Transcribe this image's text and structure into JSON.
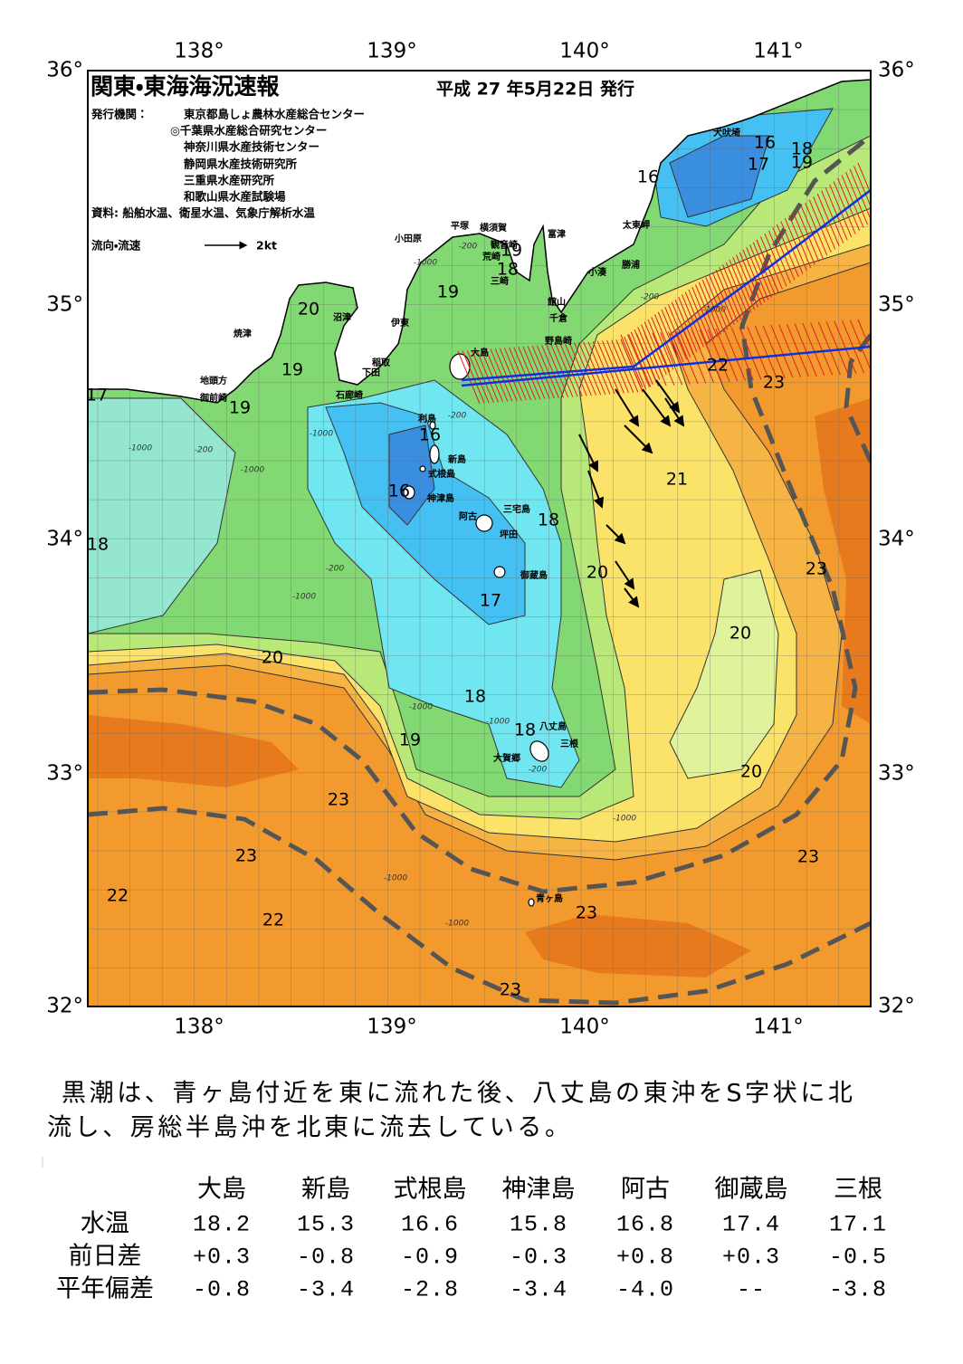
{
  "header": {
    "title": "関東・東海海況速報",
    "date": "平成 27 年5月22日 発行",
    "publisher_label": "発行機関：",
    "publishers": [
      "東京都島しょ農林水産総合センター",
      "◎千葉県水産総合研究センター",
      "神奈川県水産技術センター",
      "静岡県水産技術研究所",
      "三重県水産研究所",
      "和歌山県水産試験場"
    ],
    "sources": "資料: 船舶水温、衛星水温、気象庁解析水温",
    "legend_label": "流向・流速",
    "legend_scale": "2kt"
  },
  "map": {
    "lon_labels": [
      "138°",
      "139°",
      "140°",
      "141°"
    ],
    "lat_labels": [
      "36°",
      "35°",
      "34°",
      "33°",
      "32°"
    ],
    "places": [
      "犬吠埼",
      "太東岬",
      "勝浦",
      "小湊",
      "富津",
      "横須賀",
      "観音崎",
      "荒崎",
      "三崎",
      "館山",
      "千倉",
      "野島崎",
      "平塚",
      "小田原",
      "沼津",
      "伊東",
      "焼津",
      "稲取",
      "下田",
      "石廊崎",
      "地頭方",
      "御前崎",
      "大島",
      "利島",
      "新島",
      "式根島",
      "神津島",
      "三宅島",
      "阿古",
      "坪田",
      "御蔵島",
      "八丈島",
      "三根",
      "大賀郷",
      "青ヶ島"
    ],
    "isotherm_labels": [
      "16",
      "16",
      "17",
      "18",
      "19",
      "19",
      "18",
      "19",
      "20",
      "19",
      "19",
      "17",
      "22",
      "23",
      "16",
      "21",
      "16",
      "18",
      "18",
      "23",
      "20",
      "17",
      "20",
      "20",
      "18",
      "18",
      "19",
      "20",
      "23",
      "23",
      "23",
      "22",
      "23",
      "22",
      "23"
    ],
    "depth_labels": [
      "-200",
      "-1000",
      "-200",
      "-1000",
      "-200",
      "-1000",
      "-1000",
      "-200",
      "-1000",
      "-200",
      "-1000",
      "-1000",
      "-1000",
      "-200",
      "-1000",
      "-1000",
      "-1000"
    ]
  },
  "summary": [
    "黒潮は、青ヶ島付近を東に流れた後、八丈島の東沖をS字状に北",
    "流し、房総半島沖を北東に流去している。"
  ],
  "table": {
    "columns": [
      "大島",
      "新島",
      "式根島",
      "神津島",
      "阿古",
      "御蔵島",
      "三根"
    ],
    "rows": [
      {
        "label": "水温",
        "values": [
          "18.2",
          "15.3",
          "16.6",
          "15.8",
          "16.8",
          "17.4",
          "17.1"
        ]
      },
      {
        "label": "前日差",
        "values": [
          "+0.3",
          "-0.8",
          "-0.9",
          "-0.3",
          "+0.8",
          "+0.3",
          "-0.5"
        ]
      },
      {
        "label": "平年偏差",
        "values": [
          "-0.8",
          "-3.4",
          "-2.8",
          "-3.4",
          "-4.0",
          "--",
          "-3.8"
        ]
      }
    ]
  }
}
